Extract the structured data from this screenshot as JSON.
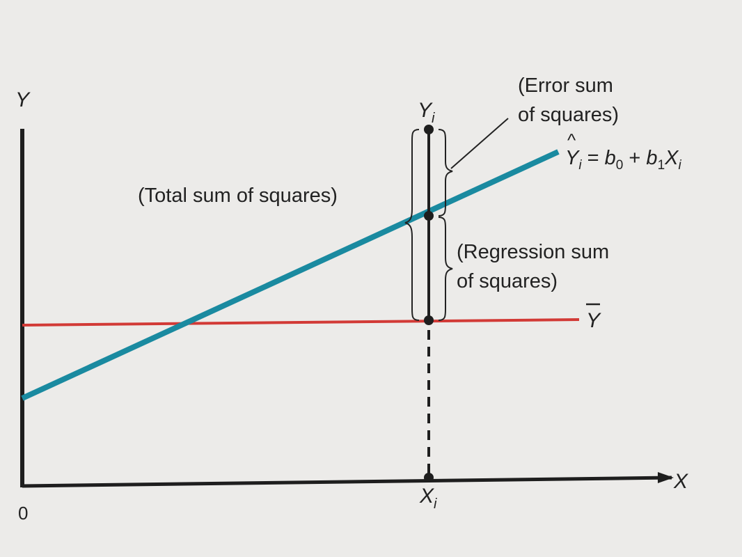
{
  "diagram": {
    "axes": {
      "y_label": "Y",
      "x_label": "X",
      "origin_label": "0",
      "xi_label": "X",
      "xi_subscript": "i"
    },
    "point": {
      "yi_label": "Y",
      "yi_subscript": "i"
    },
    "annotations": {
      "total": "(Total sum of squares)",
      "error_line1": "(Error sum",
      "error_line2": "of squares)",
      "regression_line1": "(Regression sum",
      "regression_line2": "of squares)"
    },
    "regression_line": {
      "hat": "^",
      "Y": "Y",
      "i": "i",
      "eq": " = ",
      "b": "b",
      "zero": "0",
      "plus": " + ",
      "one": "1",
      "X": "X",
      "color": "#1a8aa0"
    },
    "mean_line": {
      "label": "Y",
      "bar": "—",
      "color": "#d23a36"
    }
  }
}
